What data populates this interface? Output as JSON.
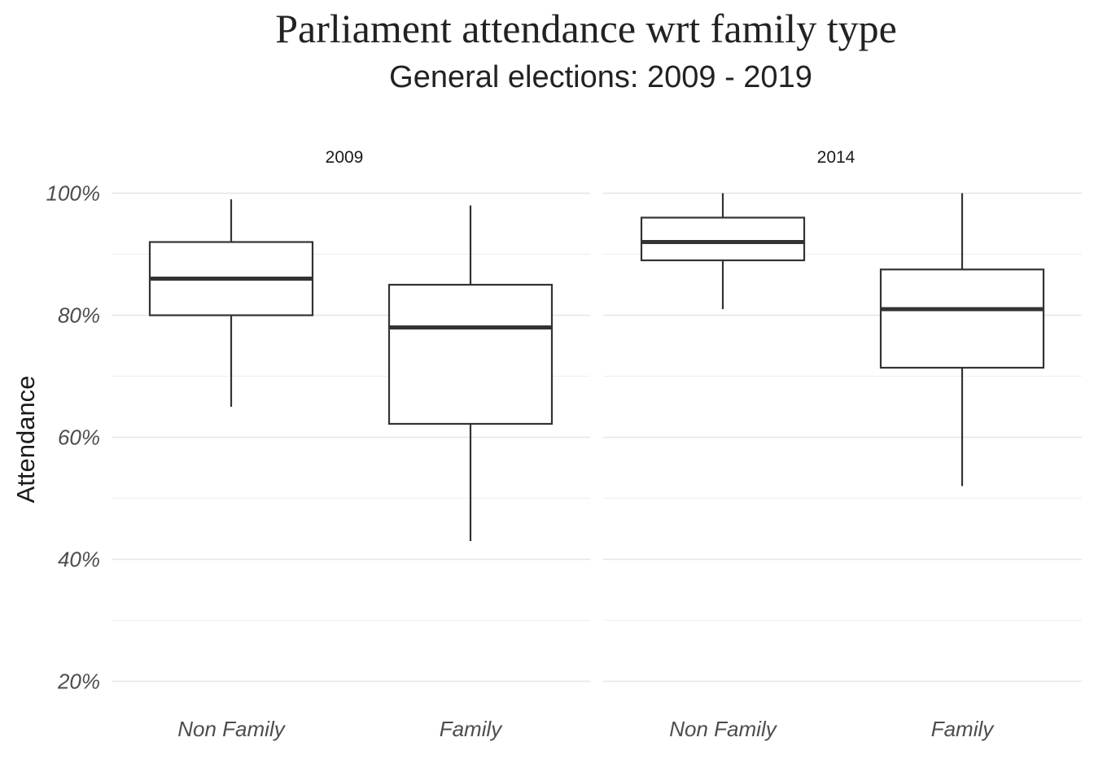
{
  "chart_data": {
    "type": "box",
    "title": "Parliament attendance wrt family type",
    "subtitle": "General elections: 2009 - 2019",
    "ylabel": "Attendance",
    "xlabel": "",
    "ylim": [
      17,
      101
    ],
    "yticks": [
      20,
      40,
      60,
      80,
      100
    ],
    "ytick_labels": [
      "20%",
      "40%",
      "60%",
      "80%",
      "100%"
    ],
    "yminor": [
      30,
      50,
      70,
      90
    ],
    "categories": [
      "Non Family",
      "Family"
    ],
    "grid": true,
    "legend": "none",
    "facets": [
      {
        "label": "2009",
        "boxes": [
          {
            "category": "Non Family",
            "min": 65,
            "q1": 80,
            "median": 86,
            "q3": 92,
            "max": 99
          },
          {
            "category": "Family",
            "min": 43,
            "q1": 62.2,
            "median": 78,
            "q3": 85,
            "max": 98
          }
        ]
      },
      {
        "label": "2014",
        "boxes": [
          {
            "category": "Non Family",
            "min": 81,
            "q1": 89,
            "median": 92,
            "q3": 96,
            "max": 100
          },
          {
            "category": "Family",
            "min": 52,
            "q1": 71.4,
            "median": 81,
            "q3": 87.5,
            "max": 100
          }
        ]
      }
    ]
  }
}
